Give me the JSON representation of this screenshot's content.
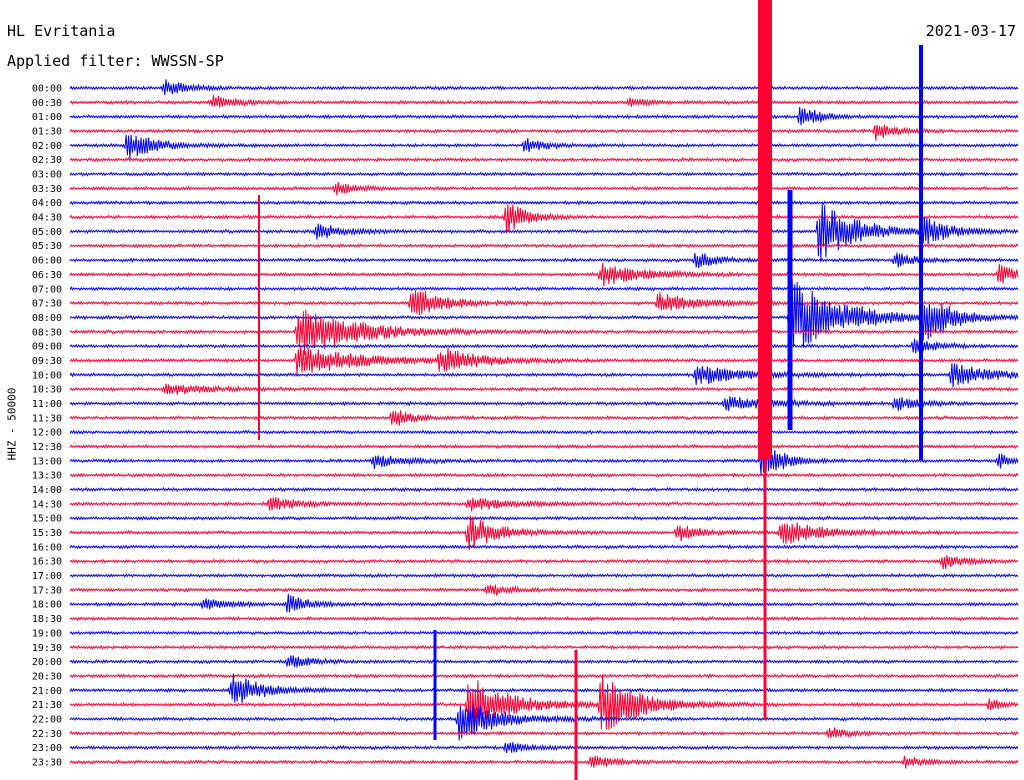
{
  "header": {
    "station": "HL Evritania",
    "date": "2021-03-17",
    "filter": "Applied filter: WWSSN-SP"
  },
  "axis_label": "HHZ - 50000",
  "colors": {
    "even_row": "#0000ff",
    "odd_row": "#ff0033"
  },
  "chart_data": {
    "type": "line",
    "title": "HL Evritania",
    "ylabel": "HHZ - 50000",
    "row_labels": [
      "00:00",
      "00:30",
      "01:00",
      "01:30",
      "02:00",
      "02:30",
      "03:00",
      "03:30",
      "04:00",
      "04:30",
      "05:00",
      "05:30",
      "06:00",
      "06:30",
      "07:00",
      "07:30",
      "08:00",
      "08:30",
      "09:00",
      "09:30",
      "10:00",
      "10:30",
      "11:00",
      "11:30",
      "12:00",
      "12:30",
      "13:00",
      "13:30",
      "14:00",
      "14:30",
      "15:00",
      "15:30",
      "16:00",
      "16:30",
      "17:00",
      "17:30",
      "18:00",
      "18:30",
      "19:00",
      "19:30",
      "20:00",
      "20:30",
      "21:00",
      "21:30",
      "22:00",
      "22:30",
      "23:00",
      "23:30"
    ],
    "row_minutes": 30,
    "events": [
      {
        "row": 0,
        "t": 0.1,
        "amp": 9,
        "dur": 0.02
      },
      {
        "row": 1,
        "t": 0.15,
        "amp": 8,
        "dur": 0.02
      },
      {
        "row": 1,
        "t": 0.59,
        "amp": 4,
        "dur": 0.02
      },
      {
        "row": 2,
        "t": 0.77,
        "amp": 12,
        "dur": 0.02
      },
      {
        "row": 3,
        "t": 0.85,
        "amp": 9,
        "dur": 0.02
      },
      {
        "row": 4,
        "t": 0.06,
        "amp": 14,
        "dur": 0.03
      },
      {
        "row": 4,
        "t": 0.48,
        "amp": 8,
        "dur": 0.02
      },
      {
        "row": 7,
        "t": 0.28,
        "amp": 7,
        "dur": 0.02
      },
      {
        "row": 9,
        "t": 0.46,
        "amp": 18,
        "dur": 0.02
      },
      {
        "row": 10,
        "t": 0.79,
        "amp": 30,
        "dur": 0.04
      },
      {
        "row": 10,
        "t": 0.9,
        "amp": 14,
        "dur": 0.03
      },
      {
        "row": 10,
        "t": 0.26,
        "amp": 8,
        "dur": 0.03
      },
      {
        "row": 12,
        "t": 0.66,
        "amp": 9,
        "dur": 0.02
      },
      {
        "row": 12,
        "t": 0.87,
        "amp": 8,
        "dur": 0.02
      },
      {
        "row": 13,
        "t": 0.56,
        "amp": 12,
        "dur": 0.04
      },
      {
        "row": 13,
        "t": 0.98,
        "amp": 10,
        "dur": 0.02
      },
      {
        "row": 15,
        "t": 0.36,
        "amp": 18,
        "dur": 0.03
      },
      {
        "row": 15,
        "t": 0.62,
        "amp": 10,
        "dur": 0.04
      },
      {
        "row": 16,
        "t": 0.76,
        "amp": 40,
        "dur": 0.05
      },
      {
        "row": 16,
        "t": 0.83,
        "amp": 12,
        "dur": 0.03
      },
      {
        "row": 16,
        "t": 0.9,
        "amp": 26,
        "dur": 0.03
      },
      {
        "row": 17,
        "t": 0.24,
        "amp": 26,
        "dur": 0.06
      },
      {
        "row": 18,
        "t": 0.89,
        "amp": 10,
        "dur": 0.02
      },
      {
        "row": 19,
        "t": 0.24,
        "amp": 16,
        "dur": 0.06
      },
      {
        "row": 19,
        "t": 0.39,
        "amp": 14,
        "dur": 0.04
      },
      {
        "row": 20,
        "t": 0.66,
        "amp": 10,
        "dur": 0.05
      },
      {
        "row": 20,
        "t": 0.93,
        "amp": 12,
        "dur": 0.04
      },
      {
        "row": 21,
        "t": 0.1,
        "amp": 6,
        "dur": 0.04
      },
      {
        "row": 22,
        "t": 0.69,
        "amp": 7,
        "dur": 0.05
      },
      {
        "row": 22,
        "t": 0.87,
        "amp": 8,
        "dur": 0.02
      },
      {
        "row": 23,
        "t": 0.34,
        "amp": 10,
        "dur": 0.02
      },
      {
        "row": 26,
        "t": 0.73,
        "amp": 22,
        "dur": 0.02
      },
      {
        "row": 26,
        "t": 0.32,
        "amp": 7,
        "dur": 0.03
      },
      {
        "row": 26,
        "t": 0.98,
        "amp": 8,
        "dur": 0.01
      },
      {
        "row": 29,
        "t": 0.21,
        "amp": 7,
        "dur": 0.03
      },
      {
        "row": 29,
        "t": 0.42,
        "amp": 7,
        "dur": 0.04
      },
      {
        "row": 31,
        "t": 0.42,
        "amp": 18,
        "dur": 0.03
      },
      {
        "row": 31,
        "t": 0.64,
        "amp": 10,
        "dur": 0.02
      },
      {
        "row": 31,
        "t": 0.75,
        "amp": 14,
        "dur": 0.04
      },
      {
        "row": 33,
        "t": 0.92,
        "amp": 8,
        "dur": 0.02
      },
      {
        "row": 35,
        "t": 0.44,
        "amp": 7,
        "dur": 0.02
      },
      {
        "row": 36,
        "t": 0.14,
        "amp": 6,
        "dur": 0.03
      },
      {
        "row": 36,
        "t": 0.23,
        "amp": 10,
        "dur": 0.02
      },
      {
        "row": 40,
        "t": 0.23,
        "amp": 8,
        "dur": 0.02
      },
      {
        "row": 42,
        "t": 0.17,
        "amp": 18,
        "dur": 0.03
      },
      {
        "row": 43,
        "t": 0.42,
        "amp": 30,
        "dur": 0.04
      },
      {
        "row": 43,
        "t": 0.56,
        "amp": 30,
        "dur": 0.04
      },
      {
        "row": 43,
        "t": 0.62,
        "amp": 8,
        "dur": 0.01
      },
      {
        "row": 43,
        "t": 0.97,
        "amp": 8,
        "dur": 0.01
      },
      {
        "row": 44,
        "t": 0.41,
        "amp": 22,
        "dur": 0.04
      },
      {
        "row": 45,
        "t": 0.8,
        "amp": 6,
        "dur": 0.02
      },
      {
        "row": 46,
        "t": 0.46,
        "amp": 6,
        "dur": 0.02
      },
      {
        "row": 47,
        "t": 0.55,
        "amp": 8,
        "dur": 0.02
      },
      {
        "row": 47,
        "t": 0.88,
        "amp": 6,
        "dur": 0.02
      }
    ]
  }
}
